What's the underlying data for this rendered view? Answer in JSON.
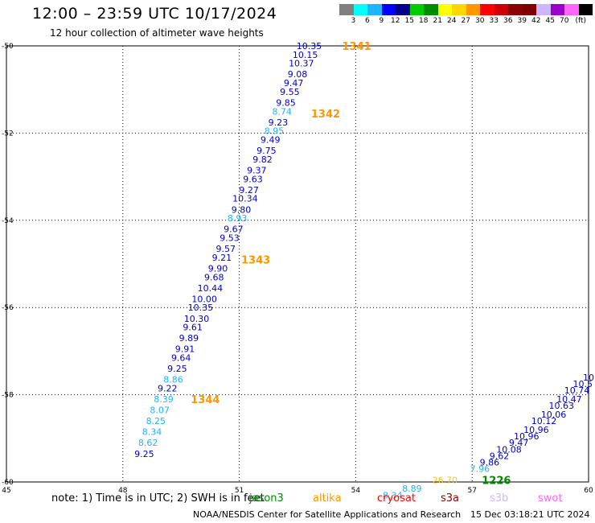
{
  "title": "12:00 – 23:59 UTC 10/17/2024",
  "subtitle": "12 hour collection of altimeter wave heights",
  "legend": {
    "unit": "(ft)",
    "colors": [
      "#808080",
      "#00ffff",
      "#1eb4ff",
      "#0000ff",
      "#00008b",
      "#00cd00",
      "#008b00",
      "#ffff00",
      "#ffd700",
      "#ff9600",
      "#ff0000",
      "#cd0000",
      "#8b0000",
      "#800000",
      "#cdb5ff",
      "#9b00cd",
      "#ff64ff",
      "#000000"
    ],
    "labels": [
      "3",
      "6",
      "9",
      "12",
      "15",
      "18",
      "21",
      "24",
      "27",
      "30",
      "33",
      "36",
      "39",
      "42",
      "45",
      "70"
    ]
  },
  "note": "note:  1) Time is in UTC; 2) SWH is in feet",
  "satellites": [
    {
      "name": "jason3",
      "color": "#008b00"
    },
    {
      "name": "altika",
      "color": "#ff9600"
    },
    {
      "name": "cryosat",
      "color": "#ff0000"
    },
    {
      "name": "s3a",
      "color": "#8b0000"
    },
    {
      "name": "s3b",
      "color": "#cdb5ff"
    },
    {
      "name": "swot",
      "color": "#ff64ff"
    }
  ],
  "credit": "NOAA/NESDIS Center for Satellite Applications and Research",
  "stamp": "15 Dec 03:18:21 UTC 2024",
  "chart_data": {
    "type": "scatter",
    "xlim": [
      45,
      60
    ],
    "ylim": [
      -60,
      -50
    ],
    "x_ticks": [
      "45",
      "48",
      "51",
      "54",
      "57",
      "60"
    ],
    "y_ticks": [
      "-50",
      "-52",
      "-54",
      "-56",
      "-58",
      "-60"
    ],
    "grid": true,
    "color_key": {
      "dark": "#0000cd",
      "light": "#1eb4ff",
      "amber": "#ffc800",
      "altika": "#ff9600",
      "jason3": "#008b00"
    },
    "series": [
      {
        "points": [
          {
            "x": 52.8,
            "y": -50.0,
            "v": "10.35",
            "c": "dark"
          },
          {
            "x": 52.7,
            "y": -50.2,
            "v": "10.15",
            "c": "dark"
          },
          {
            "x": 52.6,
            "y": -50.4,
            "v": "10.37",
            "c": "dark"
          },
          {
            "x": 52.5,
            "y": -50.65,
            "v": "9.08",
            "c": "dark"
          },
          {
            "x": 52.4,
            "y": -50.85,
            "v": "9.47",
            "c": "dark"
          },
          {
            "x": 52.3,
            "y": -51.05,
            "v": "9.55",
            "c": "dark"
          },
          {
            "x": 52.2,
            "y": -51.3,
            "v": "9.85",
            "c": "dark"
          },
          {
            "x": 52.1,
            "y": -51.5,
            "v": "8.74",
            "c": "light"
          },
          {
            "x": 52.0,
            "y": -51.75,
            "v": "9.23",
            "c": "dark"
          },
          {
            "x": 51.9,
            "y": -51.95,
            "v": "8.95",
            "c": "light"
          },
          {
            "x": 51.8,
            "y": -52.15,
            "v": "9.49",
            "c": "dark"
          },
          {
            "x": 51.7,
            "y": -52.4,
            "v": "9.75",
            "c": "dark"
          },
          {
            "x": 51.6,
            "y": -52.6,
            "v": "9.82",
            "c": "dark"
          },
          {
            "x": 51.45,
            "y": -52.85,
            "v": "9.37",
            "c": "dark"
          },
          {
            "x": 51.35,
            "y": -53.05,
            "v": "9.63",
            "c": "dark"
          },
          {
            "x": 51.25,
            "y": -53.3,
            "v": "9.27",
            "c": "dark"
          },
          {
            "x": 51.15,
            "y": -53.5,
            "v": "10.34",
            "c": "dark"
          },
          {
            "x": 51.05,
            "y": -53.75,
            "v": "9.80",
            "c": "dark"
          },
          {
            "x": 50.95,
            "y": -53.95,
            "v": "8.93",
            "c": "light"
          },
          {
            "x": 50.85,
            "y": -54.2,
            "v": "9.67",
            "c": "dark"
          },
          {
            "x": 50.75,
            "y": -54.4,
            "v": "9.53",
            "c": "dark"
          },
          {
            "x": 50.65,
            "y": -54.65,
            "v": "9.57",
            "c": "dark"
          },
          {
            "x": 50.55,
            "y": -54.85,
            "v": "9.21",
            "c": "dark"
          },
          {
            "x": 50.45,
            "y": -55.1,
            "v": "9.90",
            "c": "dark"
          },
          {
            "x": 50.35,
            "y": -55.3,
            "v": "9.68",
            "c": "dark"
          },
          {
            "x": 50.25,
            "y": -55.55,
            "v": "10.44",
            "c": "dark"
          },
          {
            "x": 50.1,
            "y": -55.8,
            "v": "10.00",
            "c": "dark"
          },
          {
            "x": 50.0,
            "y": -56.0,
            "v": "10.35",
            "c": "dark"
          },
          {
            "x": 49.9,
            "y": -56.25,
            "v": "10.30",
            "c": "dark"
          },
          {
            "x": 49.8,
            "y": -56.45,
            "v": "9.61",
            "c": "dark"
          },
          {
            "x": 49.7,
            "y": -56.7,
            "v": "9.89",
            "c": "dark"
          },
          {
            "x": 49.6,
            "y": -56.95,
            "v": "9.91",
            "c": "dark"
          },
          {
            "x": 49.5,
            "y": -57.15,
            "v": "9.64",
            "c": "dark"
          },
          {
            "x": 49.4,
            "y": -57.4,
            "v": "9.25",
            "c": "dark"
          },
          {
            "x": 49.3,
            "y": -57.65,
            "v": "8.86",
            "c": "light"
          },
          {
            "x": 49.15,
            "y": -57.85,
            "v": "9.22",
            "c": "dark"
          },
          {
            "x": 49.05,
            "y": -58.1,
            "v": "8.39",
            "c": "light"
          },
          {
            "x": 48.95,
            "y": -58.35,
            "v": "8.07",
            "c": "light"
          },
          {
            "x": 48.85,
            "y": -58.6,
            "v": "8.25",
            "c": "light"
          },
          {
            "x": 48.75,
            "y": -58.85,
            "v": "8.34",
            "c": "light"
          },
          {
            "x": 48.65,
            "y": -59.1,
            "v": "8.62",
            "c": "light"
          },
          {
            "x": 48.55,
            "y": -59.35,
            "v": "9.25",
            "c": "dark"
          }
        ]
      },
      {
        "points": [
          {
            "x": 60.0,
            "y": -57.6,
            "v": "10",
            "c": "dark"
          },
          {
            "x": 59.85,
            "y": -57.75,
            "v": "10.5",
            "c": "dark"
          },
          {
            "x": 59.7,
            "y": -57.9,
            "v": "10.74",
            "c": "dark"
          },
          {
            "x": 59.5,
            "y": -58.1,
            "v": "10.47",
            "c": "dark"
          },
          {
            "x": 59.3,
            "y": -58.25,
            "v": "10.63",
            "c": "dark"
          },
          {
            "x": 59.1,
            "y": -58.45,
            "v": "10.06",
            "c": "dark"
          },
          {
            "x": 58.85,
            "y": -58.6,
            "v": "10.12",
            "c": "dark"
          },
          {
            "x": 58.65,
            "y": -58.8,
            "v": "10.96",
            "c": "dark"
          },
          {
            "x": 58.4,
            "y": -58.95,
            "v": "10.96",
            "c": "dark"
          },
          {
            "x": 58.2,
            "y": -59.1,
            "v": "9.47",
            "c": "dark"
          },
          {
            "x": 57.95,
            "y": -59.25,
            "v": "10.08",
            "c": "dark"
          },
          {
            "x": 57.7,
            "y": -59.4,
            "v": "9.62",
            "c": "dark"
          },
          {
            "x": 57.45,
            "y": -59.55,
            "v": "9.86",
            "c": "dark"
          },
          {
            "x": 57.2,
            "y": -59.7,
            "v": "7.96",
            "c": "light"
          },
          {
            "x": 56.3,
            "y": -59.95,
            "v": "26.70",
            "c": "amber"
          },
          {
            "x": 55.45,
            "y": -60.15,
            "v": "8.89",
            "c": "light"
          },
          {
            "x": 54.95,
            "y": -60.3,
            "v": "8.34",
            "c": "light"
          }
        ]
      }
    ],
    "pass_labels": [
      {
        "text": "1341",
        "x": 53.65,
        "y": -50.0,
        "c": "altika"
      },
      {
        "text": "1342",
        "x": 52.85,
        "y": -51.55,
        "c": "altika"
      },
      {
        "text": "1343",
        "x": 51.05,
        "y": -54.9,
        "c": "altika"
      },
      {
        "text": "1344",
        "x": 49.75,
        "y": -58.1,
        "c": "altika"
      },
      {
        "text": "1226",
        "x": 57.25,
        "y": -59.95,
        "c": "jason3"
      }
    ]
  }
}
